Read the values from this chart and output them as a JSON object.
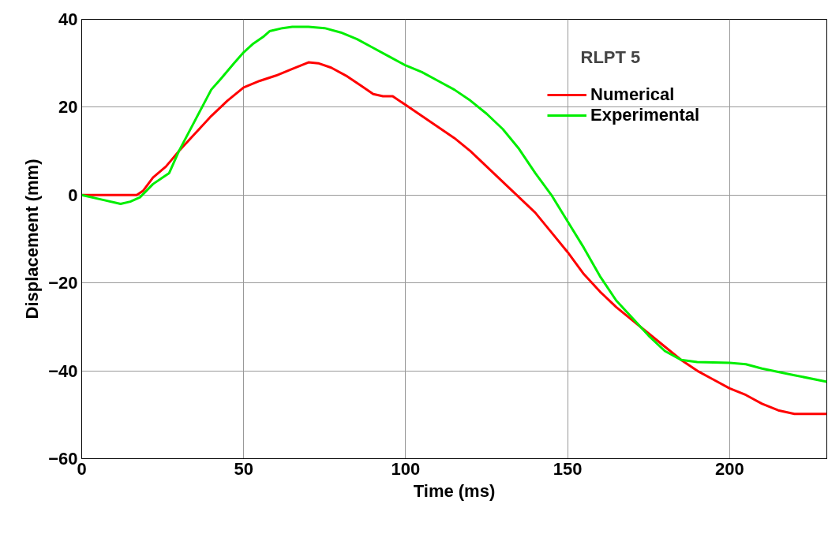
{
  "chart_data": {
    "type": "line",
    "title": "RLPT 5",
    "xlabel": "Time (ms)",
    "ylabel": "Displacement (mm)",
    "xlim": [
      0,
      230
    ],
    "xticks": [
      0,
      50,
      100,
      150,
      200
    ],
    "ylim": [
      -60,
      40
    ],
    "yticks": [
      -60,
      -40,
      -20,
      0,
      20,
      40
    ],
    "grid": true,
    "legend": "top right",
    "line_style": "solid",
    "marker": "none",
    "series": [
      {
        "name": "Numerical",
        "color": "#ff0000",
        "x": [
          0,
          17,
          19,
          22,
          26,
          30,
          35,
          40,
          45,
          50,
          55,
          60,
          65,
          70,
          73,
          77,
          82,
          86,
          90,
          93,
          96,
          100,
          105,
          110,
          115,
          120,
          125,
          130,
          135,
          140,
          145,
          150,
          155,
          160,
          165,
          170,
          175,
          180,
          185,
          190,
          195,
          200,
          205,
          210,
          215,
          220,
          230
        ],
        "values": [
          0,
          0,
          1,
          4,
          6.5,
          10,
          14,
          18,
          21.5,
          24.5,
          26,
          27.2,
          28.7,
          30.2,
          30,
          29,
          27,
          25,
          23,
          22.5,
          22.5,
          20.5,
          18,
          15.5,
          13,
          10,
          6.5,
          3,
          -0.5,
          -4,
          -8.5,
          -13,
          -18,
          -22,
          -25.5,
          -28.5,
          -31.5,
          -34.5,
          -37.5,
          -40,
          -42,
          -44,
          -45.5,
          -47.5,
          -49,
          -49.8,
          -49.8
        ]
      },
      {
        "name": "Experimental",
        "color": "#00ee00",
        "x": [
          0,
          6,
          12,
          15,
          18,
          22,
          25,
          27,
          30,
          35,
          40,
          43,
          47,
          50,
          53,
          56,
          58,
          62,
          65,
          70,
          75,
          80,
          85,
          90,
          95,
          100,
          105,
          110,
          115,
          120,
          125,
          130,
          135,
          140,
          145,
          150,
          155,
          160,
          165,
          170,
          175,
          180,
          185,
          190,
          200,
          205,
          210,
          220,
          230
        ],
        "values": [
          0,
          -1,
          -2,
          -1.5,
          -0.5,
          2.5,
          4,
          5,
          10,
          17,
          24,
          26.5,
          30,
          32.5,
          34.5,
          36,
          37.3,
          38,
          38.3,
          38.3,
          38,
          37,
          35.5,
          33.5,
          31.5,
          29.5,
          28,
          26,
          24,
          21.5,
          18.5,
          15,
          10.5,
          5,
          0,
          -6,
          -12,
          -18.5,
          -24,
          -28,
          -32,
          -35.5,
          -37.5,
          -38,
          -38.2,
          -38.5,
          -39.5,
          -41,
          -42.5
        ]
      }
    ]
  }
}
